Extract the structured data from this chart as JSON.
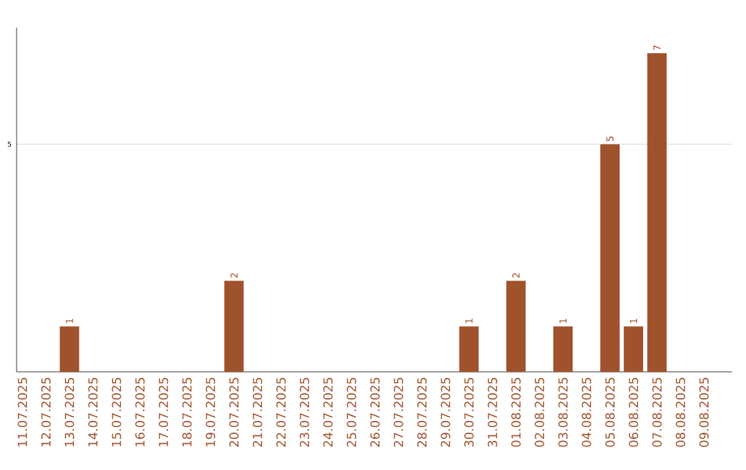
{
  "chart_data": {
    "type": "bar",
    "categories": [
      "11.07.2025",
      "12.07.2025",
      "13.07.2025",
      "14.07.2025",
      "15.07.2025",
      "16.07.2025",
      "17.07.2025",
      "18.07.2025",
      "19.07.2025",
      "20.07.2025",
      "21.07.2025",
      "22.07.2025",
      "23.07.2025",
      "24.07.2025",
      "25.07.2025",
      "26.07.2025",
      "27.07.2025",
      "28.07.2025",
      "29.07.2025",
      "30.07.2025",
      "31.07.2025",
      "01.08.2025",
      "02.08.2025",
      "03.08.2025",
      "04.08.2025",
      "05.08.2025",
      "06.08.2025",
      "07.08.2025",
      "08.08.2025",
      "09.08.2025"
    ],
    "values": [
      0,
      0,
      1,
      0,
      0,
      0,
      0,
      0,
      0,
      2,
      0,
      0,
      0,
      0,
      0,
      0,
      0,
      0,
      0,
      1,
      0,
      2,
      0,
      1,
      0,
      5,
      1,
      7,
      0,
      0
    ],
    "value_labels": [
      null,
      null,
      "1",
      null,
      null,
      null,
      null,
      null,
      null,
      "2",
      null,
      null,
      null,
      null,
      null,
      null,
      null,
      null,
      null,
      "1",
      null,
      "2",
      null,
      "1",
      null,
      "5",
      "1",
      "7",
      null,
      null
    ],
    "color": "#a0522d",
    "ylim": [
      0,
      7
    ],
    "yticks": [
      5
    ],
    "grid": "y"
  }
}
